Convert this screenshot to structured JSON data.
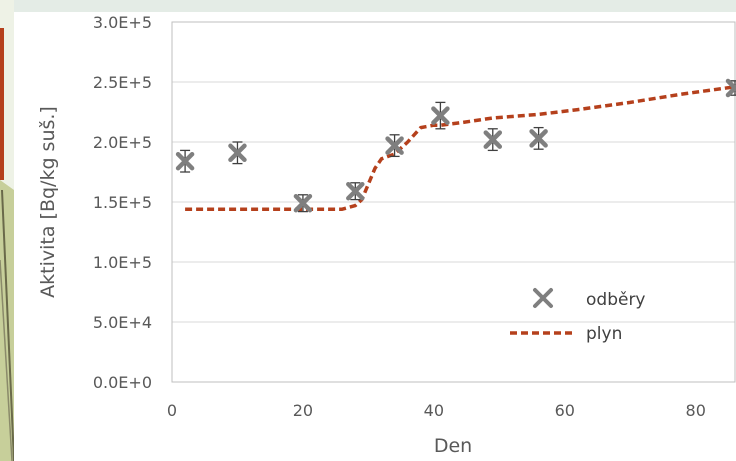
{
  "chart_data": {
    "type": "scatter",
    "xlabel": "Den",
    "ylabel": "Aktivita [Bq/kg suš.]",
    "xlim": [
      0,
      86
    ],
    "ylim": [
      0,
      300000
    ],
    "x_ticks": [
      "0",
      "20",
      "40",
      "60",
      "80"
    ],
    "y_ticks": [
      "0.0E+0",
      "5.0E+4",
      "1.0E+5",
      "1.5E+5",
      "2.0E+5",
      "2.5E+5",
      "3.0E+5"
    ],
    "grid": true,
    "legend_position": "bottom-right",
    "series": [
      {
        "name": "odběry",
        "kind": "markers",
        "color": "#7f7f7f",
        "x": [
          2,
          10,
          20,
          28,
          34,
          41,
          49,
          56,
          86
        ],
        "y": [
          184000,
          191000,
          149000,
          159000,
          197000,
          222000,
          202000,
          203000,
          245000
        ],
        "err": [
          9000,
          9000,
          7000,
          7000,
          9000,
          11000,
          9000,
          9000,
          6000
        ]
      },
      {
        "name": "plyn",
        "kind": "dashed-line",
        "color": "#b5401c",
        "x": [
          2,
          10,
          20,
          26,
          28,
          29,
          30,
          31,
          32,
          34,
          36,
          38,
          40,
          41,
          44,
          49,
          56,
          62,
          70,
          78,
          86
        ],
        "y": [
          144000,
          144000,
          144000,
          144000,
          147000,
          152000,
          165000,
          178000,
          186000,
          190000,
          200000,
          212000,
          214000,
          214000,
          216000,
          220000,
          223000,
          227000,
          233000,
          240000,
          246000
        ]
      }
    ]
  }
}
